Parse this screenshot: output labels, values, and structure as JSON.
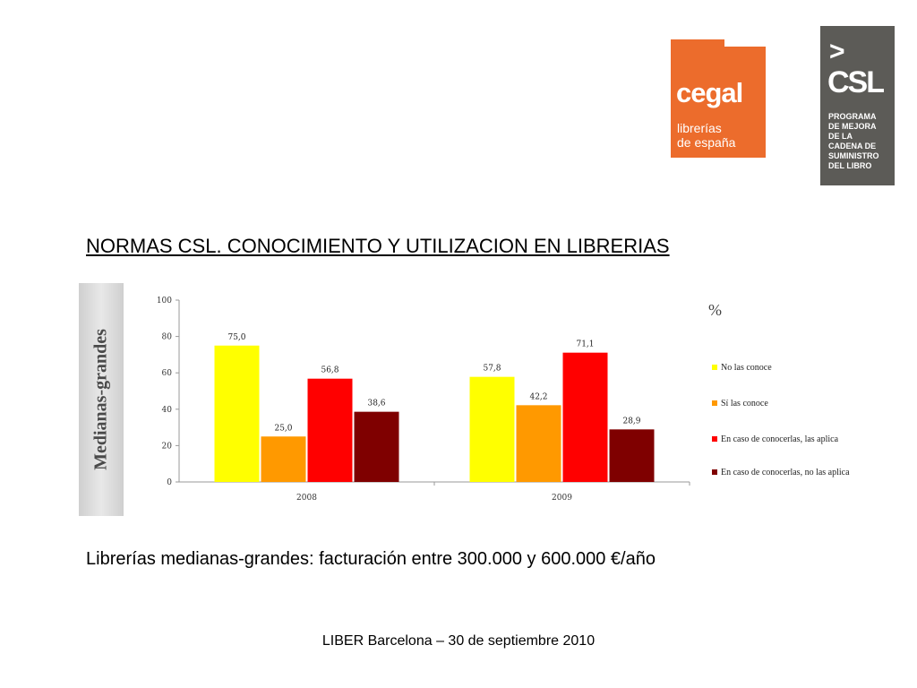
{
  "slide": {
    "title": "NORMAS CSL. CONOCIMIENTO Y UTILIZACION EN LIBRERIAS",
    "side_label": "Medianas-grandes",
    "subtitle": "Librerías medianas-grandes: facturación entre 300.000 y 600.000 €/año",
    "footer": "LIBER Barcelona – 30 de septiembre 2010"
  },
  "logos": {
    "cegal": {
      "big": "cegal",
      "line1": "librerías",
      "line2": "de españa",
      "color": "#ec6c2c"
    },
    "csl": {
      "arrow": ">",
      "word": "CSL",
      "lines": [
        "PROGRAMA",
        "DE MEJORA",
        "DE LA",
        "CADENA DE",
        "SUMINISTRO",
        "DEL LIBRO"
      ],
      "color": "#5c5b57"
    }
  },
  "chart_data": {
    "type": "bar",
    "unit_label": "%",
    "categories": [
      "2008",
      "2009"
    ],
    "series": [
      {
        "name": "No las conoce",
        "color": "#ffff00",
        "values": [
          75.0,
          57.8
        ],
        "labels": [
          "75,0",
          "57,8"
        ]
      },
      {
        "name": "Sí las conoce",
        "color": "#ff9900",
        "values": [
          25.0,
          42.2
        ],
        "labels": [
          "25,0",
          "42,2"
        ]
      },
      {
        "name": "En caso de conocerlas, las aplica",
        "color": "#ff0000",
        "values": [
          56.8,
          71.1
        ],
        "labels": [
          "56,8",
          "71,1"
        ]
      },
      {
        "name": "En caso de conocerlas, no las aplica",
        "color": "#7f0000",
        "values": [
          38.6,
          28.9
        ],
        "labels": [
          "38,6",
          "28,9"
        ]
      }
    ],
    "ylim": [
      0,
      100
    ],
    "yticks": [
      "0",
      "20",
      "40",
      "60",
      "80",
      "100"
    ],
    "legend_position": "right",
    "grid": false
  }
}
